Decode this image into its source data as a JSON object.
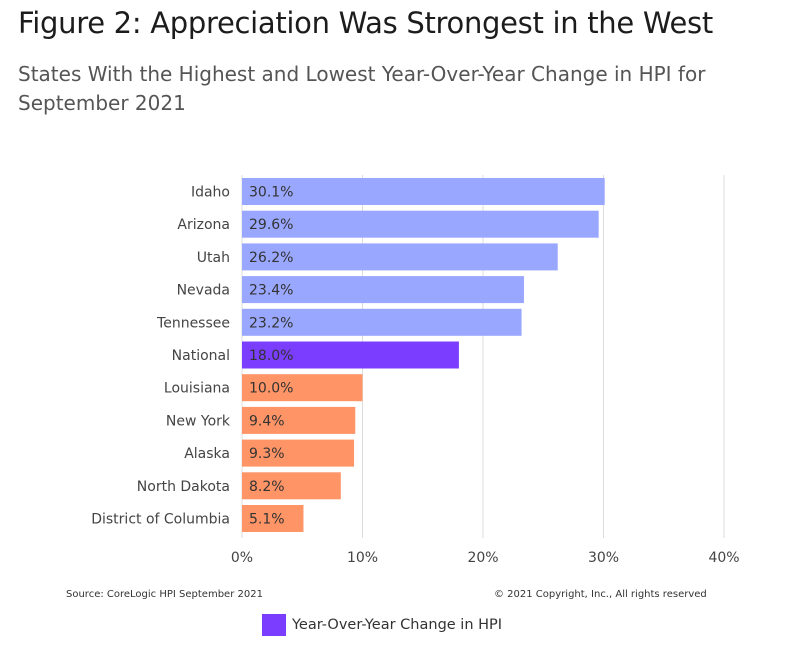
{
  "header": {
    "title": "Figure 2: Appreciation Was Strongest in the West",
    "subtitle": "States With the Highest and Lowest Year-Over-Year Change in HPI for September 2021"
  },
  "footer": {
    "source": "Source: CoreLogic HPI September 2021",
    "copyright": "© 2021 Copyright, Inc., All rights reserved"
  },
  "legend": {
    "label": "Year-Over-Year Change in HPI",
    "color": "#7b3dff"
  },
  "colors": {
    "highest": "#9aa7ff",
    "national": "#7b3dff",
    "lowest": "#ff9466",
    "grid": "#dcdcdc"
  },
  "chart_data": {
    "type": "bar",
    "orientation": "horizontal",
    "title": "Figure 2: Appreciation Was Strongest in the West",
    "subtitle": "States With the Highest and Lowest Year-Over-Year Change in HPI for September 2021",
    "categories": [
      "Idaho",
      "Arizona",
      "Utah",
      "Nevada",
      "Tennessee",
      "National",
      "Louisiana",
      "New York",
      "Alaska",
      "North Dakota",
      "District of Columbia"
    ],
    "values": [
      30.1,
      29.6,
      26.2,
      23.4,
      23.2,
      18.0,
      10.0,
      9.4,
      9.3,
      8.2,
      5.1
    ],
    "value_labels": [
      "30.1%",
      "29.6%",
      "26.2%",
      "23.4%",
      "23.2%",
      "18.0%",
      "10.0%",
      "9.4%",
      "9.3%",
      "8.2%",
      "5.1%"
    ],
    "groups": [
      "highest",
      "highest",
      "highest",
      "highest",
      "highest",
      "national",
      "lowest",
      "lowest",
      "lowest",
      "lowest",
      "lowest"
    ],
    "series": [
      {
        "name": "Year-Over-Year Change in HPI",
        "values": [
          30.1,
          29.6,
          26.2,
          23.4,
          23.2,
          18.0,
          10.0,
          9.4,
          9.3,
          8.2,
          5.1
        ]
      }
    ],
    "xlim": [
      0,
      40
    ],
    "xticks": [
      0,
      10,
      20,
      30,
      40
    ],
    "xtick_labels": [
      "0%",
      "10%",
      "20%",
      "30%",
      "40%"
    ],
    "grid": true,
    "legend_position": "bottom"
  }
}
